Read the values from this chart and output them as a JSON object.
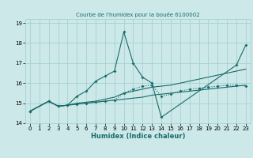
{
  "title": "Courbe de l'humidex pour la bouée 6100002",
  "xlabel": "Humidex (Indice chaleur)",
  "bg_color": "#cce8e8",
  "line_color": "#1a6b6b",
  "xlim": [
    -0.5,
    23.5
  ],
  "ylim": [
    14,
    19.2
  ],
  "yticks": [
    14,
    15,
    16,
    17,
    18,
    19
  ],
  "xticks": [
    0,
    1,
    2,
    3,
    4,
    5,
    6,
    7,
    8,
    9,
    10,
    11,
    12,
    13,
    14,
    15,
    16,
    17,
    18,
    19,
    20,
    21,
    22,
    23
  ],
  "s1_x": [
    0,
    2,
    3,
    4,
    5,
    6,
    7,
    8,
    9,
    10,
    11,
    12,
    13,
    14,
    15,
    16,
    17,
    18,
    19,
    20,
    21,
    22,
    23
  ],
  "s1_y": [
    14.6,
    15.1,
    14.85,
    14.9,
    14.95,
    15.0,
    15.05,
    15.1,
    15.15,
    15.2,
    15.25,
    15.3,
    15.4,
    15.45,
    15.5,
    15.55,
    15.6,
    15.65,
    15.7,
    15.75,
    15.8,
    15.85,
    15.9
  ],
  "s2_x": [
    0,
    2,
    3,
    4,
    5,
    6,
    7,
    8,
    9,
    10,
    11,
    12,
    13,
    14,
    15,
    16,
    17,
    18,
    19,
    20,
    21,
    22,
    23
  ],
  "s2_y": [
    14.6,
    15.1,
    14.85,
    14.9,
    15.0,
    15.05,
    15.1,
    15.2,
    15.3,
    15.5,
    15.6,
    15.7,
    15.8,
    15.85,
    15.9,
    16.0,
    16.1,
    16.2,
    16.3,
    16.4,
    16.5,
    16.6,
    16.7
  ],
  "s3_x": [
    0,
    2,
    3,
    4,
    5,
    6,
    7,
    8,
    9,
    10,
    11,
    12,
    13,
    14,
    22,
    23
  ],
  "s3_y": [
    14.6,
    15.1,
    14.85,
    14.9,
    15.35,
    15.6,
    16.1,
    16.35,
    16.6,
    18.55,
    17.0,
    16.3,
    16.0,
    14.3,
    16.9,
    17.9
  ],
  "s4_x": [
    0,
    2,
    3,
    4,
    5,
    6,
    7,
    8,
    9,
    10,
    11,
    12,
    13,
    14,
    15,
    16,
    17,
    18,
    19,
    20,
    21,
    22,
    23
  ],
  "s4_y": [
    14.6,
    15.1,
    14.85,
    14.9,
    14.95,
    15.0,
    15.05,
    15.1,
    15.15,
    15.5,
    15.7,
    15.85,
    15.9,
    15.35,
    15.45,
    15.6,
    15.7,
    15.75,
    15.8,
    15.85,
    15.9,
    15.9,
    15.85
  ]
}
